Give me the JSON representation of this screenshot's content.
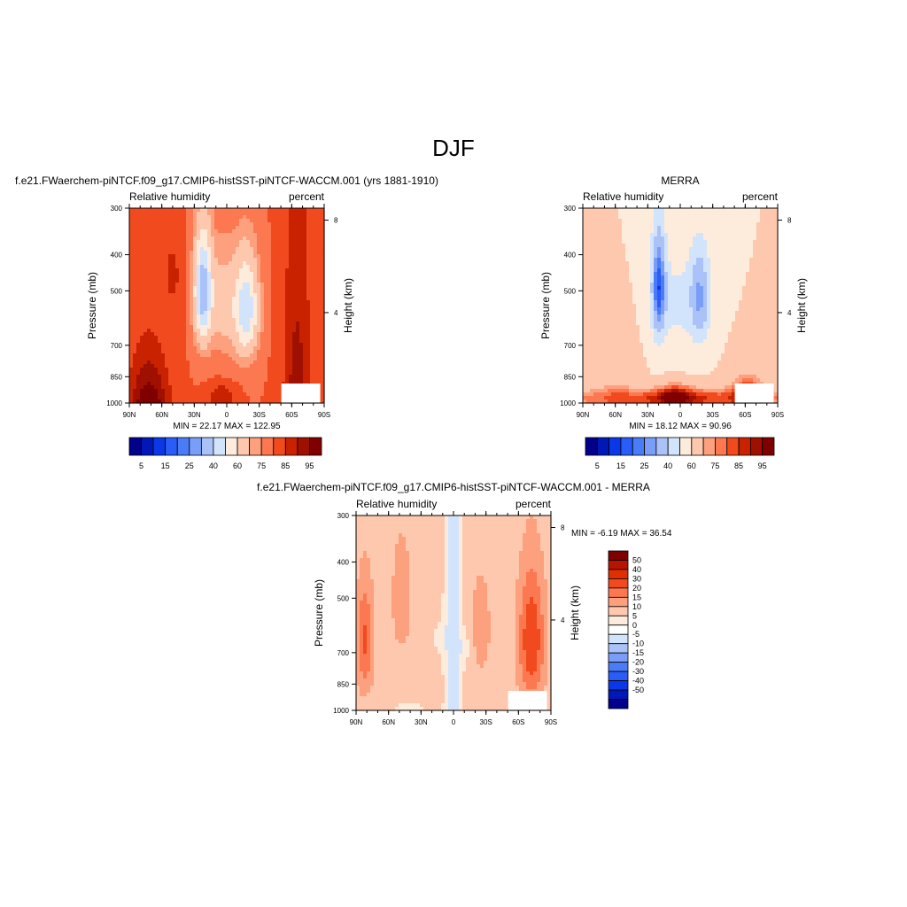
{
  "figure": {
    "title": "DJF"
  },
  "chart_data": [
    {
      "type": "heatmap",
      "panel_title": "f.e21.FWaerchem-piNTCF.f09_g17.CMIP6-histSST-piNTCF-WACCM.001 (yrs 1881-1910)",
      "left_string": "Relative humidity",
      "right_string": "percent",
      "ylabel": "Pressure (mb)",
      "ylabel_right": "Height (km)",
      "x_ticks": [
        "90N",
        "60N",
        "30N",
        "0",
        "30S",
        "60S",
        "90S"
      ],
      "y_ticks": [
        "300",
        "400",
        "500",
        "700",
        "850",
        "1000"
      ],
      "height_ticks": [
        "8",
        "4"
      ],
      "stats": "MIN =  22.17  MAX = 122.95",
      "min": 22.17,
      "max": 122.95,
      "field": "model",
      "levels": [
        5,
        10,
        15,
        20,
        25,
        30,
        40,
        50,
        60,
        70,
        75,
        80,
        85,
        90,
        95
      ],
      "colorbar_labels": [
        "5",
        "15",
        "25",
        "40",
        "60",
        "75",
        "85",
        "95"
      ],
      "colorbar_colors": [
        "#00008b",
        "#0018b8",
        "#0a38e8",
        "#2a5cf8",
        "#4a7cf8",
        "#7a9ef8",
        "#aac2f8",
        "#d2e4fb",
        "#fdebdc",
        "#fdc8ad",
        "#fda07e",
        "#fb7850",
        "#f04a1e",
        "#c82200",
        "#a01000",
        "#800000"
      ]
    },
    {
      "type": "heatmap",
      "panel_title": "MERRA",
      "left_string": "Relative humidity",
      "right_string": "percent",
      "ylabel": "Pressure (mb)",
      "ylabel_right": "Height (km)",
      "x_ticks": [
        "90N",
        "60N",
        "30N",
        "0",
        "30S",
        "60S",
        "90S"
      ],
      "y_ticks": [
        "300",
        "400",
        "500",
        "700",
        "850",
        "1000"
      ],
      "height_ticks": [
        "8",
        "4"
      ],
      "stats": "MIN =  18.12  MAX =  90.96",
      "min": 18.12,
      "max": 90.96,
      "field": "obs",
      "levels": [
        5,
        10,
        15,
        20,
        25,
        30,
        40,
        50,
        60,
        70,
        75,
        80,
        85,
        90,
        95
      ],
      "colorbar_labels": [
        "5",
        "15",
        "25",
        "40",
        "60",
        "75",
        "85",
        "95"
      ],
      "colorbar_colors": [
        "#00008b",
        "#0018b8",
        "#0a38e8",
        "#2a5cf8",
        "#4a7cf8",
        "#7a9ef8",
        "#aac2f8",
        "#d2e4fb",
        "#fdebdc",
        "#fdc8ad",
        "#fda07e",
        "#fb7850",
        "#f04a1e",
        "#c82200",
        "#a01000",
        "#800000"
      ]
    },
    {
      "type": "heatmap",
      "panel_title": "f.e21.FWaerchem-piNTCF.f09_g17.CMIP6-histSST-piNTCF-WACCM.001 - MERRA",
      "left_string": "Relative humidity",
      "right_string": "percent",
      "ylabel": "Pressure (mb)",
      "ylabel_right": "Height (km)",
      "x_ticks": [
        "90N",
        "60N",
        "30N",
        "0",
        "30S",
        "60S",
        "90S"
      ],
      "y_ticks": [
        "300",
        "400",
        "500",
        "700",
        "850",
        "1000"
      ],
      "height_ticks": [
        "8",
        "4"
      ],
      "stats": "MIN =  -6.19  MAX =  36.54",
      "min": -6.19,
      "max": 36.54,
      "field": "diff",
      "levels": [
        -50,
        -40,
        -30,
        -20,
        -15,
        -10,
        -5,
        0,
        5,
        10,
        15,
        20,
        30,
        40,
        50
      ],
      "colorbar_labels": [
        "50",
        "40",
        "30",
        "20",
        "15",
        "10",
        "5",
        "0",
        "-5",
        "-10",
        "-15",
        "-20",
        "-30",
        "-40",
        "-50"
      ],
      "colorbar_colors": [
        "#800000",
        "#b81400",
        "#e03000",
        "#f04a1e",
        "#fb7850",
        "#fda07e",
        "#fdc8ad",
        "#fdebdc",
        "#ffffff",
        "#d2e4fb",
        "#aac2f8",
        "#7a9ef8",
        "#4a7cf8",
        "#2a5cf8",
        "#0a38e8",
        "#0018b8",
        "#00008b"
      ]
    }
  ]
}
